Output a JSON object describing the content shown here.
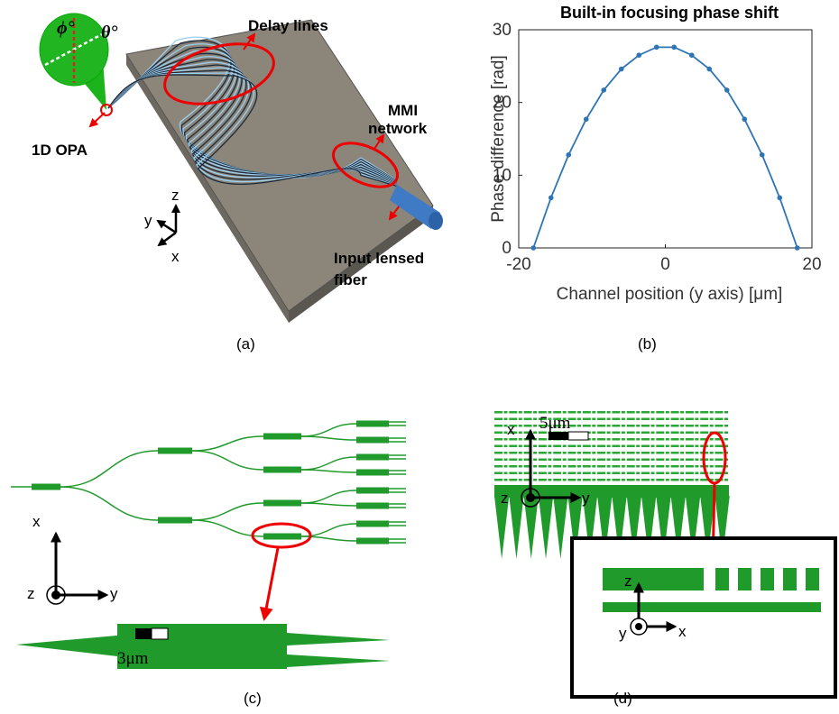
{
  "panel_a": {
    "delay_lines": "Delay lines",
    "mmi_network": [
      "MMI",
      "network"
    ],
    "opa": "1D OPA",
    "fiber": [
      "Input lensed",
      "fiber"
    ],
    "phi": "ϕ°",
    "theta": "θ°",
    "axis_x": "x",
    "axis_y": "y",
    "axis_z": "z",
    "caption": "(a)"
  },
  "chart_data": {
    "type": "line",
    "title": "Built-in focusing phase shift",
    "xlabel": "Channel position (y axis) [μm]",
    "ylabel": "Phase difference [rad]",
    "x": [
      -18,
      -15.6,
      -13.2,
      -10.8,
      -8.4,
      -6,
      -3.6,
      -1.2,
      1.2,
      3.6,
      6,
      8.4,
      10.8,
      13.2,
      15.6,
      18
    ],
    "values": [
      0,
      6.9,
      12.8,
      17.7,
      21.7,
      24.6,
      26.5,
      27.6,
      27.6,
      26.5,
      24.6,
      21.7,
      17.7,
      12.8,
      6.9,
      0
    ],
    "color": "#2e75b6",
    "xlim": [
      -20,
      20
    ],
    "xticks": [
      -20,
      0,
      20
    ],
    "ylim": [
      0,
      30
    ],
    "yticks": [
      0,
      10,
      20,
      30
    ],
    "caption": "(b)"
  },
  "panel_c": {
    "axis_x": "x",
    "axis_y": "y",
    "axis_z": "z",
    "scale": "3μm",
    "caption": "(c)"
  },
  "panel_d": {
    "axis_x": "x",
    "axis_y": "y",
    "axis_z": "z",
    "scale": "5μm",
    "inset_axis_z": "z",
    "inset_axis_y": "y",
    "inset_axis_x": "x",
    "caption": "(d)"
  }
}
